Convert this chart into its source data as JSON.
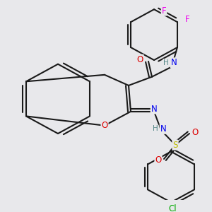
{
  "background_color": "#e8e8eb",
  "bond_color": "#1a1a1a",
  "atom_colors": {
    "O": "#dd0000",
    "N": "#0000ee",
    "S": "#bbbb00",
    "F": "#ee00ee",
    "Cl": "#00aa00",
    "H": "#558888",
    "C": "#1a1a1a"
  },
  "figsize": [
    3.0,
    3.0
  ],
  "dpi": 100
}
